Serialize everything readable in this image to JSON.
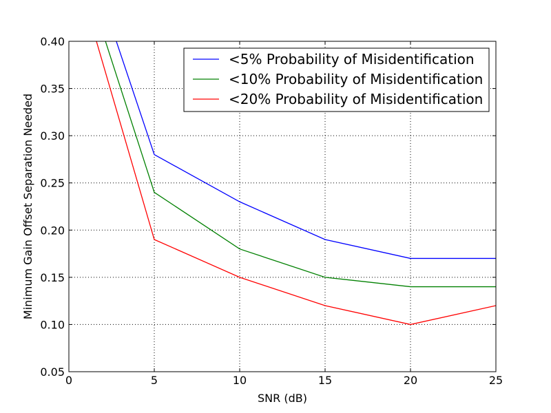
{
  "chart_data": {
    "type": "line",
    "title": "",
    "xlabel": "SNR (dB)",
    "ylabel": "Minimum Gain Offset Separation Needed",
    "xlim": [
      0,
      25
    ],
    "ylim": [
      0.05,
      0.4
    ],
    "xticks": [
      0,
      5,
      10,
      15,
      20,
      25
    ],
    "xtick_labels": [
      "0",
      "5",
      "10",
      "15",
      "20",
      "25"
    ],
    "yticks": [
      0.05,
      0.1,
      0.15,
      0.2,
      0.25,
      0.3,
      0.35,
      0.4
    ],
    "ytick_labels": [
      "0.05",
      "0.10",
      "0.15",
      "0.20",
      "0.25",
      "0.30",
      "0.35",
      "0.40"
    ],
    "grid": true,
    "legend_position": "top-right",
    "x": [
      0,
      5,
      10,
      15,
      20,
      25
    ],
    "series": [
      {
        "name": "<5% Probability of Misidentification",
        "color": "#0000ff",
        "values": [
          0.55,
          0.28,
          0.23,
          0.19,
          0.17,
          0.17
        ]
      },
      {
        "name": "<10% Probability of Misidentification",
        "color": "#008000",
        "values": [
          0.52,
          0.24,
          0.18,
          0.15,
          0.14,
          0.14
        ]
      },
      {
        "name": "<20% Probability of Misidentification",
        "color": "#ff0000",
        "values": [
          0.5,
          0.19,
          0.15,
          0.12,
          0.1,
          0.12
        ]
      }
    ]
  }
}
